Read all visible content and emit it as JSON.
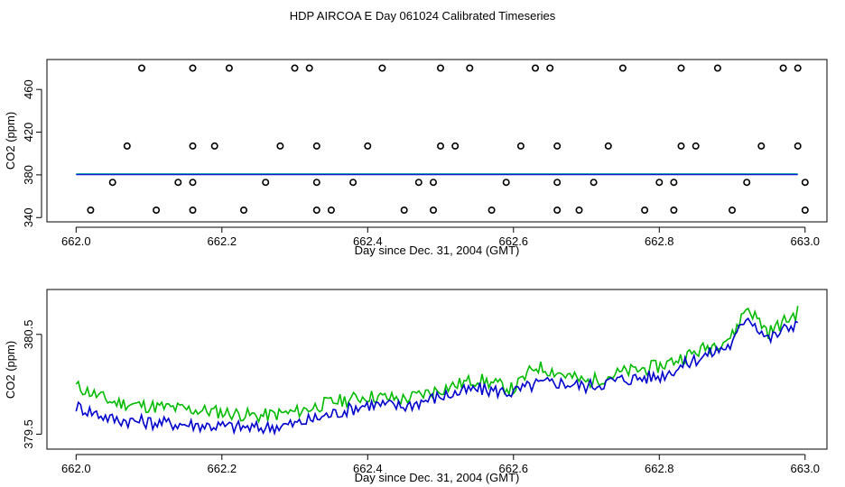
{
  "title": "HDP AIRCOA E  Day 061024  Calibrated Timeseries",
  "colors": {
    "series_blue": "#0000cc",
    "series_green": "#00bb00",
    "series_teal": "#009999",
    "axis": "#000000"
  },
  "chart_data": [
    {
      "type": "scatter",
      "xlabel": "Day since Dec. 31, 2004 (GMT)",
      "ylabel": "CO2 (ppm)",
      "xlim": [
        661.96,
        663.03
      ],
      "ylim": [
        336,
        488
      ],
      "xticks": [
        "662.0",
        "662.2",
        "662.4",
        "662.6",
        "662.8",
        "663.0"
      ],
      "yticks": [
        "340",
        "380",
        "420",
        "460"
      ],
      "points": [
        [
          662.09,
          480
        ],
        [
          662.16,
          480
        ],
        [
          662.21,
          480
        ],
        [
          662.3,
          480
        ],
        [
          662.32,
          480
        ],
        [
          662.42,
          480
        ],
        [
          662.5,
          480
        ],
        [
          662.54,
          480
        ],
        [
          662.63,
          480
        ],
        [
          662.65,
          480
        ],
        [
          662.75,
          480
        ],
        [
          662.83,
          480
        ],
        [
          662.88,
          480
        ],
        [
          662.97,
          480
        ],
        [
          662.99,
          480
        ],
        [
          662.07,
          407
        ],
        [
          662.16,
          407
        ],
        [
          662.19,
          407
        ],
        [
          662.28,
          407
        ],
        [
          662.33,
          407
        ],
        [
          662.4,
          407
        ],
        [
          662.5,
          407
        ],
        [
          662.52,
          407
        ],
        [
          662.61,
          407
        ],
        [
          662.66,
          407
        ],
        [
          662.73,
          407
        ],
        [
          662.83,
          407
        ],
        [
          662.85,
          407
        ],
        [
          662.94,
          407
        ],
        [
          662.99,
          407
        ],
        [
          662.05,
          373
        ],
        [
          662.14,
          373
        ],
        [
          662.16,
          373
        ],
        [
          662.26,
          373
        ],
        [
          662.33,
          373
        ],
        [
          662.38,
          373
        ],
        [
          662.47,
          373
        ],
        [
          662.49,
          373
        ],
        [
          662.59,
          373
        ],
        [
          662.66,
          373
        ],
        [
          662.71,
          373
        ],
        [
          662.8,
          373
        ],
        [
          662.82,
          373
        ],
        [
          662.92,
          373
        ],
        [
          663.0,
          373
        ],
        [
          662.02,
          347
        ],
        [
          662.11,
          347
        ],
        [
          662.16,
          347
        ],
        [
          662.23,
          347
        ],
        [
          662.33,
          347
        ],
        [
          662.35,
          347
        ],
        [
          662.45,
          347
        ],
        [
          662.49,
          347
        ],
        [
          662.57,
          347
        ],
        [
          662.66,
          347
        ],
        [
          662.69,
          347
        ],
        [
          662.78,
          347
        ],
        [
          662.82,
          347
        ],
        [
          662.9,
          347
        ],
        [
          663.0,
          347
        ]
      ],
      "series": [
        {
          "name": "teal",
          "x": [
            662.0,
            662.99
          ],
          "values": [
            381,
            381
          ]
        },
        {
          "name": "blue",
          "x": [
            662.0,
            662.99
          ],
          "values": [
            380.2,
            380.2
          ]
        }
      ]
    },
    {
      "type": "line",
      "xlabel": "Day since Dec. 31, 2004 (GMT)",
      "ylabel": "CO2 (ppm)",
      "xlim": [
        661.96,
        663.03
      ],
      "ylim": [
        379.35,
        380.95
      ],
      "xticks": [
        "662.0",
        "662.2",
        "662.4",
        "662.6",
        "662.8",
        "663.0"
      ],
      "yticks": [
        "379.5",
        "380.5"
      ],
      "series": [
        {
          "name": "green",
          "x": [
            662.0,
            662.05,
            662.1,
            662.15,
            662.2,
            662.25,
            662.3,
            662.35,
            662.4,
            662.45,
            662.5,
            662.55,
            662.6,
            662.63,
            662.66,
            662.7,
            662.75,
            662.8,
            662.85,
            662.9,
            662.92,
            662.95,
            662.99
          ],
          "values": [
            379.98,
            379.82,
            379.78,
            379.75,
            379.72,
            379.68,
            379.72,
            379.82,
            379.88,
            379.85,
            379.95,
            380.05,
            379.95,
            380.18,
            380.12,
            380.02,
            380.12,
            380.18,
            380.32,
            380.48,
            380.78,
            380.52,
            380.72
          ]
        },
        {
          "name": "blue",
          "x": [
            662.0,
            662.05,
            662.1,
            662.15,
            662.2,
            662.25,
            662.3,
            662.35,
            662.4,
            662.45,
            662.5,
            662.55,
            662.6,
            662.63,
            662.66,
            662.7,
            662.75,
            662.8,
            662.85,
            662.9,
            662.92,
            662.95,
            662.99
          ],
          "values": [
            379.78,
            379.65,
            379.62,
            379.6,
            379.58,
            379.56,
            379.6,
            379.7,
            379.8,
            379.78,
            379.88,
            379.95,
            379.92,
            380.0,
            380.02,
            379.98,
            380.05,
            380.08,
            380.25,
            380.4,
            380.7,
            380.45,
            380.63
          ]
        }
      ]
    }
  ]
}
